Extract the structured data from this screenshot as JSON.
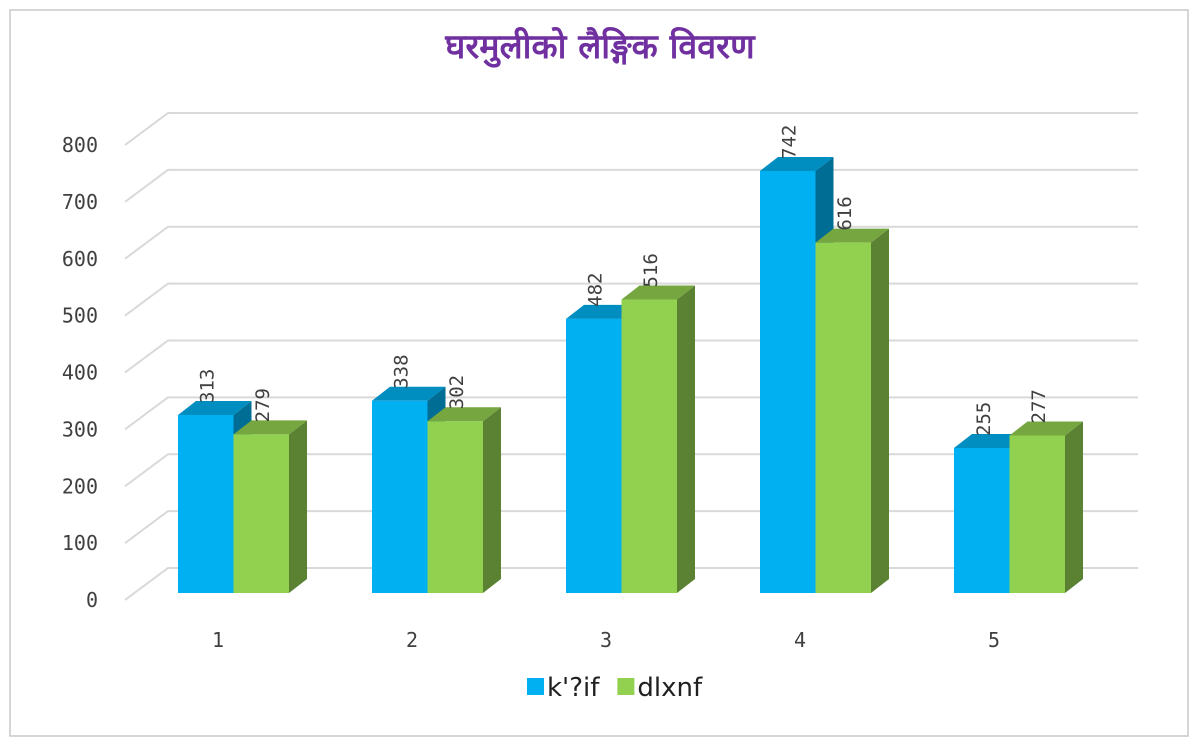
{
  "chart_data": {
    "type": "bar3d",
    "title": "घरमुलीको लैङ्गिक विवरण",
    "categories": [
      "1",
      "2",
      "3",
      "4",
      "5"
    ],
    "series": [
      {
        "name": "k'?if",
        "color": "#00b0f0",
        "values": [
          313,
          338,
          482,
          742,
          255
        ]
      },
      {
        "name": "dlxnf",
        "color": "#92d050",
        "values": [
          279,
          302,
          516,
          616,
          277
        ]
      }
    ],
    "ylim": [
      0,
      800
    ],
    "yticks": [
      0,
      100,
      200,
      300,
      400,
      500,
      600,
      700,
      800
    ],
    "grid": true,
    "legend": "bottom"
  }
}
